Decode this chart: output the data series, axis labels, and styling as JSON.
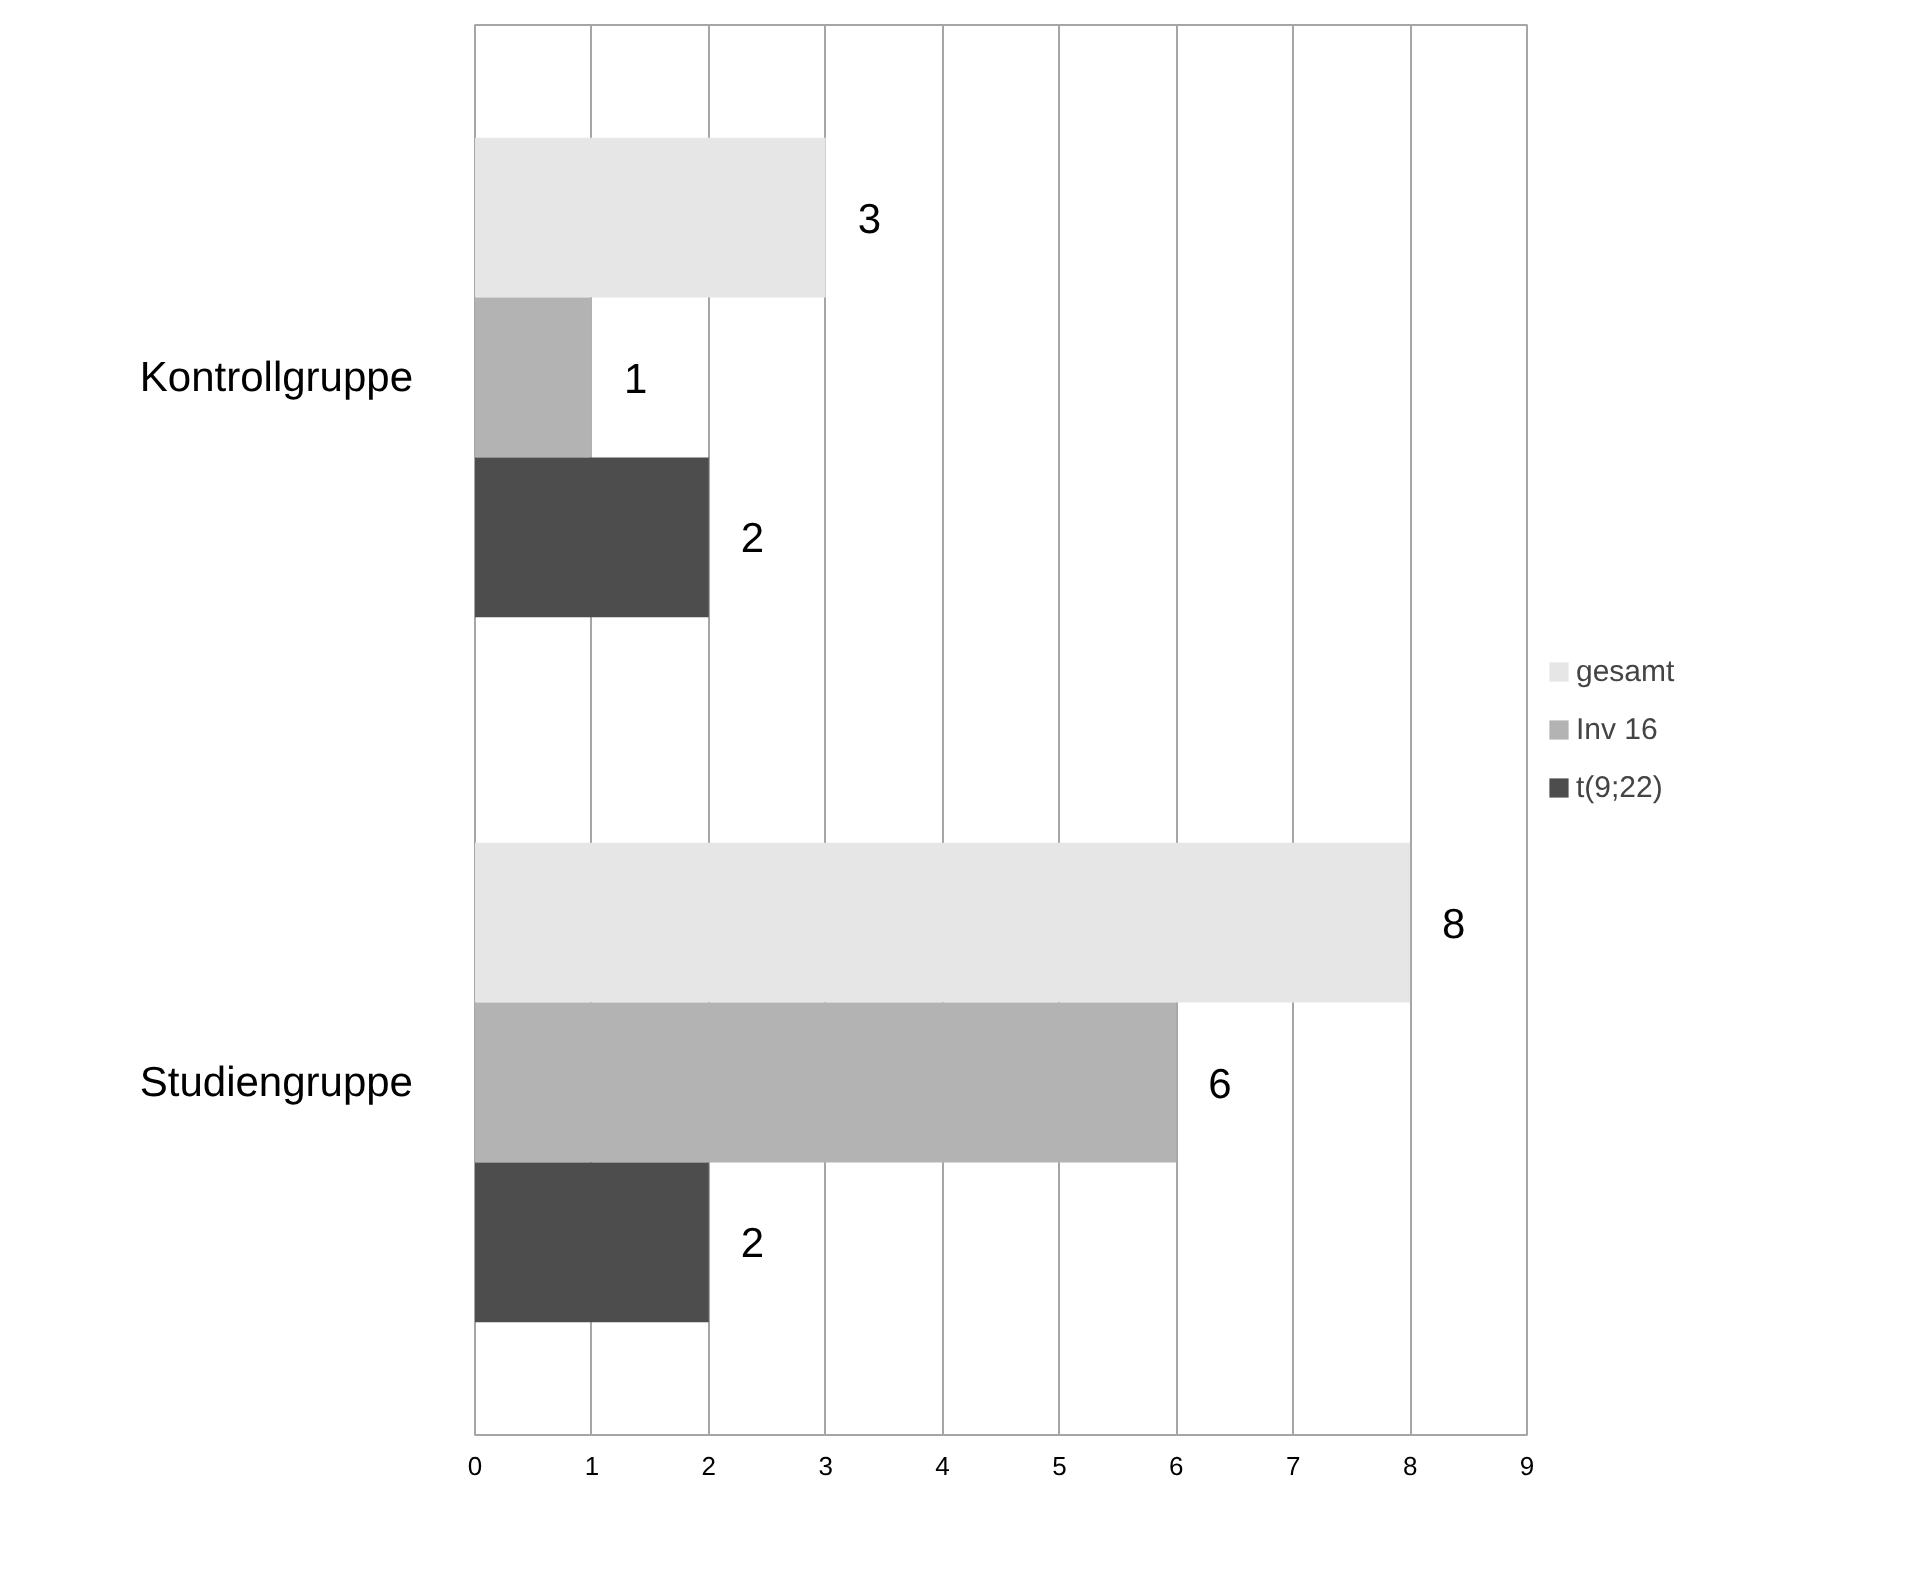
{
  "chart_data": {
    "type": "bar",
    "orientation": "horizontal",
    "categories": [
      "Kontrollgruppe",
      "Studiengruppe"
    ],
    "series": [
      {
        "name": "gesamt",
        "color": "#e6e6e6",
        "values": [
          3,
          8
        ]
      },
      {
        "name": "Inv 16",
        "color": "#b3b3b3",
        "values": [
          1,
          6
        ]
      },
      {
        "name": "t(9;22)",
        "color": "#4d4d4d",
        "values": [
          2,
          2
        ]
      }
    ],
    "xlim": [
      0,
      9
    ],
    "xticks": [
      0,
      1,
      2,
      3,
      4,
      5,
      6,
      7,
      8,
      9
    ],
    "grid": "x",
    "legend": "right",
    "data_labels": true
  }
}
